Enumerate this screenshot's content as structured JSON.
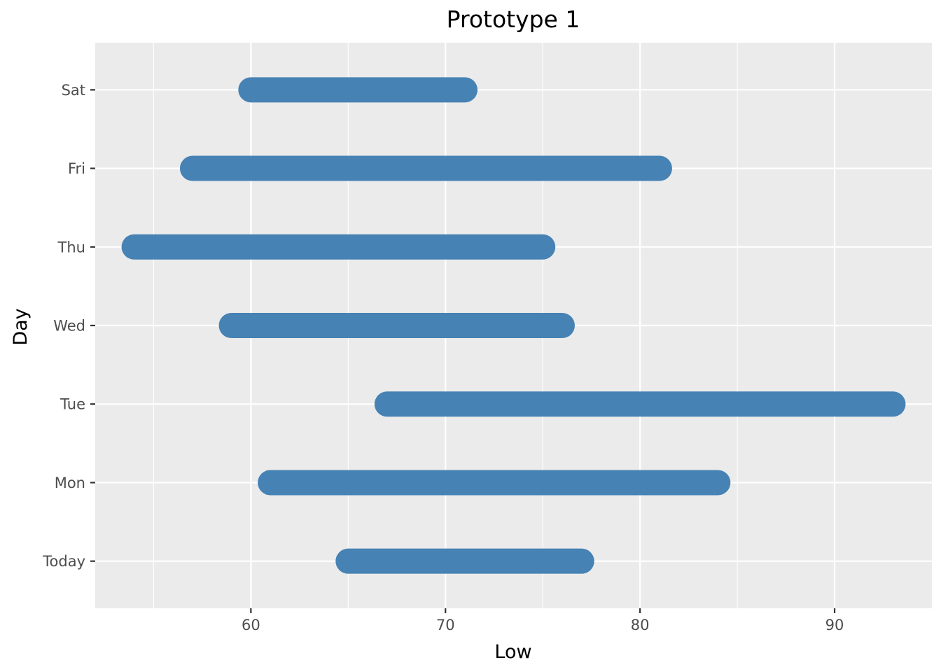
{
  "chart_data": {
    "type": "range-bar",
    "title": "Prototype 1",
    "xlabel": "Low",
    "ylabel": "Day",
    "xlim": [
      52,
      95
    ],
    "x_ticks": [
      60,
      70,
      80,
      90
    ],
    "x_minor_ticks": [
      55,
      65,
      75,
      85
    ],
    "categories": [
      "Today",
      "Mon",
      "Tue",
      "Wed",
      "Thu",
      "Fri",
      "Sat"
    ],
    "series": [
      {
        "color": "#4682b4",
        "values": [
          {
            "category": "Today",
            "low": 65,
            "high": 77
          },
          {
            "category": "Mon",
            "low": 61,
            "high": 84
          },
          {
            "category": "Tue",
            "low": 67,
            "high": 93
          },
          {
            "category": "Wed",
            "low": 59,
            "high": 76
          },
          {
            "category": "Thu",
            "low": 54,
            "high": 75
          },
          {
            "category": "Fri",
            "low": 57,
            "high": 81
          },
          {
            "category": "Sat",
            "low": 60,
            "high": 71
          }
        ]
      }
    ],
    "grid": true,
    "panel_background": "#ebebeb",
    "grid_color": "#ffffff",
    "legend": "none"
  }
}
